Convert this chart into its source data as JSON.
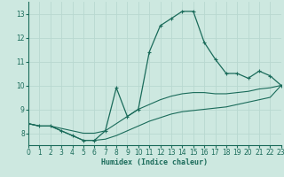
{
  "title": "",
  "xlabel": "Humidex (Indice chaleur)",
  "xlim": [
    0,
    23
  ],
  "ylim": [
    7.5,
    13.5
  ],
  "yticks": [
    8,
    9,
    10,
    11,
    12,
    13
  ],
  "xticks": [
    0,
    1,
    2,
    3,
    4,
    5,
    6,
    7,
    8,
    9,
    10,
    11,
    12,
    13,
    14,
    15,
    16,
    17,
    18,
    19,
    20,
    21,
    22,
    23
  ],
  "background_color": "#cde8e0",
  "grid_color": "#b8d8d0",
  "line_color": "#1a6b5a",
  "curve_main": {
    "x": [
      0,
      1,
      2,
      3,
      4,
      5,
      6,
      7,
      8,
      9,
      10,
      11,
      12,
      13,
      14,
      15,
      16,
      17,
      18,
      19,
      20,
      21,
      22,
      23
    ],
    "y": [
      8.4,
      8.3,
      8.3,
      8.1,
      7.9,
      7.7,
      7.7,
      8.1,
      9.9,
      8.7,
      9.0,
      11.4,
      12.5,
      12.8,
      13.1,
      13.1,
      11.8,
      11.1,
      10.5,
      10.5,
      10.3,
      10.6,
      10.4,
      10.0
    ]
  },
  "curve_lower": {
    "x": [
      0,
      1,
      2,
      3,
      4,
      5,
      6,
      7,
      8,
      9,
      10,
      11,
      12,
      13,
      14,
      15,
      16,
      17,
      18,
      19,
      20,
      21,
      22,
      23
    ],
    "y": [
      8.4,
      8.3,
      8.3,
      8.1,
      7.9,
      7.7,
      7.7,
      7.75,
      7.9,
      8.1,
      8.3,
      8.5,
      8.65,
      8.8,
      8.9,
      8.95,
      9.0,
      9.05,
      9.1,
      9.2,
      9.3,
      9.4,
      9.5,
      10.0
    ]
  },
  "curve_upper": {
    "x": [
      0,
      1,
      2,
      3,
      4,
      5,
      6,
      7,
      8,
      9,
      10,
      11,
      12,
      13,
      14,
      15,
      16,
      17,
      18,
      19,
      20,
      21,
      22,
      23
    ],
    "y": [
      8.4,
      8.3,
      8.3,
      8.2,
      8.1,
      8.0,
      8.0,
      8.1,
      8.4,
      8.7,
      9.0,
      9.2,
      9.4,
      9.55,
      9.65,
      9.7,
      9.7,
      9.65,
      9.65,
      9.7,
      9.75,
      9.85,
      9.9,
      10.0
    ]
  }
}
